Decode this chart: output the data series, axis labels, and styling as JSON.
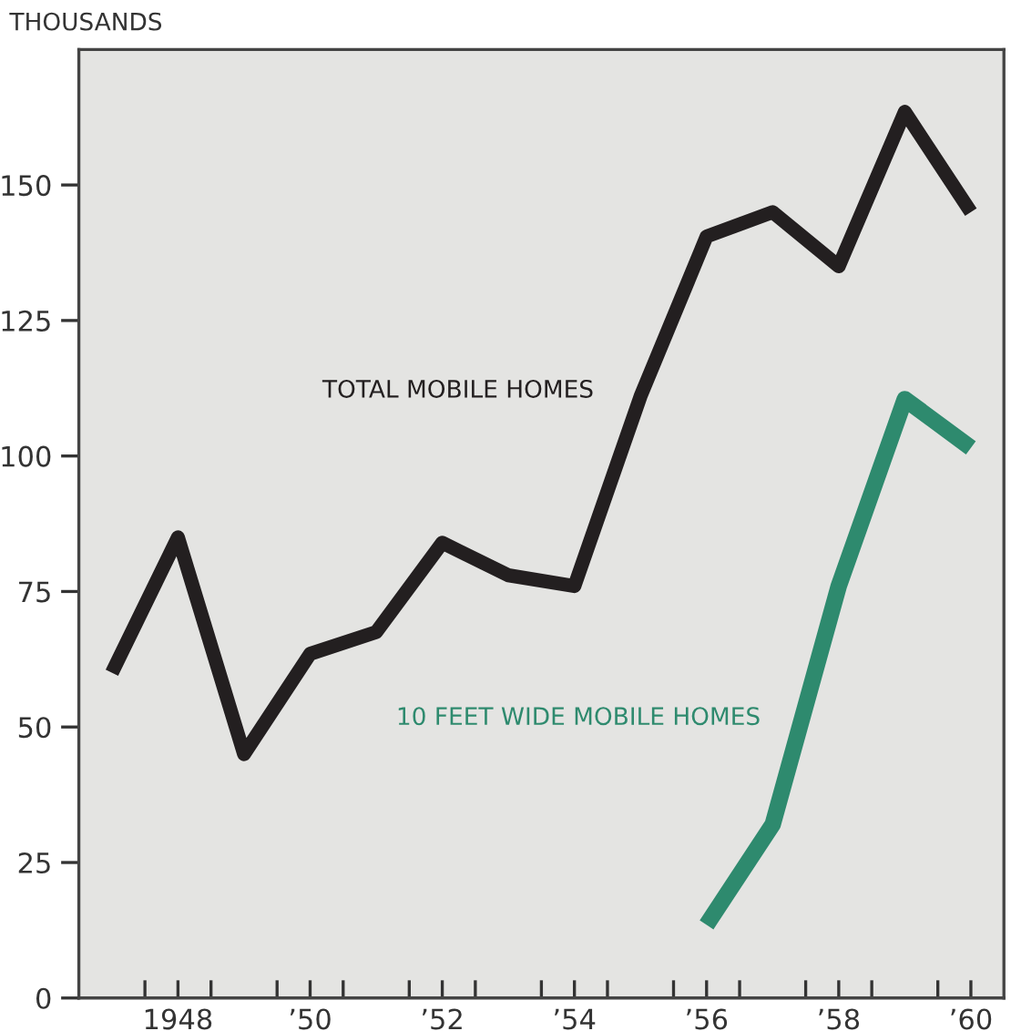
{
  "chart_data": {
    "type": "line",
    "ylabel": "THOUSANDS",
    "x": [
      1947,
      1948,
      1949,
      1950,
      1951,
      1952,
      1953,
      1954,
      1955,
      1956,
      1957,
      1958,
      1959,
      1960
    ],
    "series": [
      {
        "name": "TOTAL MOBILE HOMES",
        "color": "#231f20",
        "values": [
          60,
          85,
          45,
          63.5,
          67.5,
          84,
          78,
          76,
          111,
          140.5,
          145,
          135,
          163.5,
          145
        ]
      },
      {
        "name": "10 FEET WIDE MOBILE HOMES",
        "color": "#2e8a6e",
        "x": [
          1956,
          1957,
          1958,
          1959,
          1960
        ],
        "values": [
          13.5,
          32,
          76,
          110.5,
          101.5
        ]
      }
    ],
    "xlim": [
      1946.5,
      1960.5
    ],
    "ylim": [
      0,
      175
    ],
    "xticks": [
      {
        "value": 1947.5,
        "label": null
      },
      {
        "value": 1948,
        "label": "1948"
      },
      {
        "value": 1948.5,
        "label": null
      },
      {
        "value": 1949.5,
        "label": null
      },
      {
        "value": 1950,
        "label": "’50"
      },
      {
        "value": 1950.5,
        "label": null
      },
      {
        "value": 1951.5,
        "label": null
      },
      {
        "value": 1952,
        "label": "’52"
      },
      {
        "value": 1952.5,
        "label": null
      },
      {
        "value": 1953.5,
        "label": null
      },
      {
        "value": 1954,
        "label": "’54"
      },
      {
        "value": 1954.5,
        "label": null
      },
      {
        "value": 1955.5,
        "label": null
      },
      {
        "value": 1956,
        "label": "’56"
      },
      {
        "value": 1956.5,
        "label": null
      },
      {
        "value": 1957.5,
        "label": null
      },
      {
        "value": 1958,
        "label": "’58"
      },
      {
        "value": 1958.5,
        "label": null
      },
      {
        "value": 1959.5,
        "label": null
      },
      {
        "value": 1960,
        "label": "’60"
      }
    ],
    "yticks": [
      0,
      25,
      50,
      75,
      100,
      125,
      150
    ],
    "grid": false,
    "legend": false,
    "marker": "none",
    "line_style": "solid"
  }
}
